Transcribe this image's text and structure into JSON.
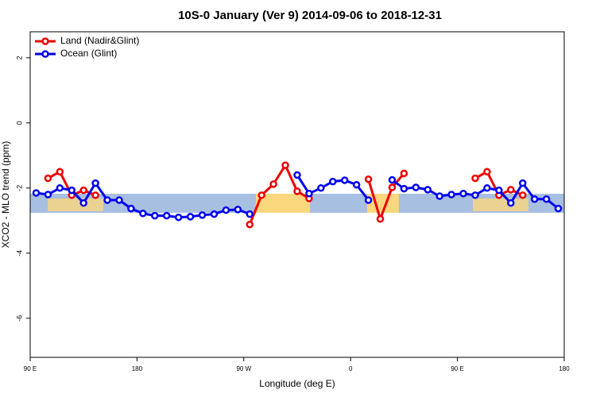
{
  "chart_data": {
    "type": "line",
    "title": "10S-0 January (Ver 9)   2014-09-06 to 2018-12-31",
    "x_label": "Longitude (deg E)",
    "y_label": "XCO2 - MLO trend (ppm)",
    "x": [
      95,
      105,
      115,
      125,
      135,
      145,
      155,
      165,
      175,
      185,
      195,
      205,
      215,
      225,
      235,
      245,
      255,
      265,
      275,
      285,
      295,
      305,
      315,
      325,
      335,
      345,
      355,
      365,
      375,
      385,
      395,
      405,
      415,
      425,
      435,
      445,
      455,
      465,
      475,
      485,
      495,
      505,
      515,
      525,
      535
    ],
    "series": [
      {
        "name": "Land (Nadir&Glint)",
        "color": "#ee0000",
        "values": [
          null,
          -1.7,
          -1.5,
          -2.22,
          -2.07,
          -2.22,
          null,
          null,
          null,
          null,
          null,
          null,
          null,
          null,
          null,
          null,
          null,
          null,
          -3.12,
          -2.22,
          -1.88,
          -1.3,
          -2.1,
          -2.32,
          null,
          null,
          null,
          null,
          -1.73,
          -2.95,
          -1.98,
          -1.55,
          null,
          null,
          null,
          null,
          null,
          -1.7,
          -1.5,
          -2.22,
          -2.05,
          -2.22,
          null,
          null,
          null
        ]
      },
      {
        "name": "Ocean (Glint)",
        "color": "#0000ee",
        "values": [
          -2.15,
          -2.2,
          -2.0,
          -2.07,
          -2.46,
          -1.85,
          -2.37,
          -2.37,
          -2.63,
          -2.78,
          -2.85,
          -2.85,
          -2.9,
          -2.88,
          -2.83,
          -2.8,
          -2.68,
          -2.66,
          -2.8,
          null,
          null,
          null,
          -1.6,
          -2.17,
          -2.0,
          -1.8,
          -1.76,
          -1.9,
          -2.37,
          null,
          -1.75,
          -2.02,
          -1.98,
          -2.05,
          -2.25,
          -2.2,
          -2.17,
          -2.22,
          -2.0,
          -2.07,
          -2.46,
          -1.85,
          -2.34,
          -2.34,
          -2.63
        ]
      }
    ],
    "xlim": [
      90,
      540
    ],
    "xticks": [
      {
        "value": 90,
        "label": "90 E"
      },
      180,
      {
        "value": 270,
        "label": "90 W"
      },
      {
        "value": 360,
        "label": "0"
      },
      {
        "value": 450,
        "label": "90 E"
      },
      {
        "value": 540,
        "label": "180"
      }
    ],
    "ylim": [
      -7.2,
      2.8
    ],
    "yticks": [
      -6,
      -4,
      -2,
      0,
      2
    ],
    "legend": "top-left"
  }
}
